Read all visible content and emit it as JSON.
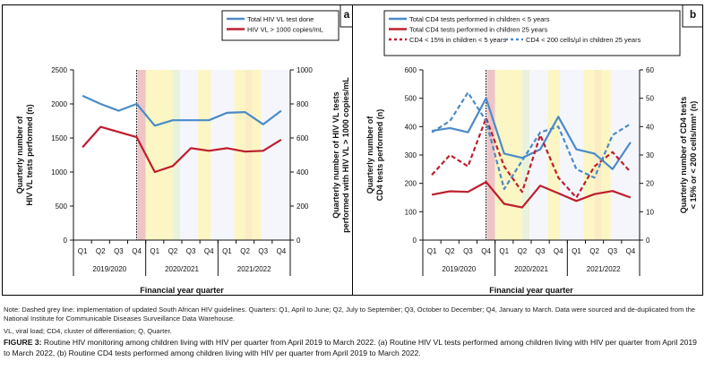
{
  "colors": {
    "blue": "#4a8bc9",
    "red": "#be1e2d",
    "band_pink": "#eec4c6",
    "band_yellow": "#fbf6c4",
    "band_green": "#e9f2dc",
    "band_lavender": "#f5f6fc",
    "band_orange": "#fcecc4"
  },
  "chart_data": [
    {
      "type": "line",
      "panel_label": "a",
      "xlabel": "Financial year quarter",
      "ylabel": "Quarterly number of HIV VL tests performed (n)",
      "ylabel_lines": [
        "Quarterly number of",
        "HIV VL tests performed (n)"
      ],
      "y2label_lines": [
        "Quarterly number of HIV VL tests",
        "performed with HIV VL > 1000 copies/mL"
      ],
      "ylim": [
        0,
        2500
      ],
      "y2lim": [
        0,
        1000
      ],
      "yticks": [
        "0",
        "500",
        "1000",
        "1500",
        "2000",
        "2500"
      ],
      "y2ticks": [
        "0",
        "200",
        "400",
        "600",
        "800",
        "1000"
      ],
      "categories": [
        "Q1",
        "Q2",
        "Q3",
        "Q4",
        "Q1",
        "Q2",
        "Q3",
        "Q4",
        "Q1",
        "Q2",
        "Q3",
        "Q4"
      ],
      "groups": [
        "2019/2020",
        "2020/2021",
        "2021/2022"
      ],
      "guideline_line_after_index": 3,
      "series": [
        {
          "name": "Total HIV VL test done",
          "axis": "left",
          "style": "solid",
          "color": "blue",
          "values": [
            2120,
            2000,
            1900,
            2000,
            1680,
            1760,
            1760,
            1760,
            1870,
            1880,
            1700,
            1900
          ]
        },
        {
          "name": "HIV VL > 1000 copies/mL",
          "axis": "right",
          "style": "solid",
          "color": "red",
          "values": [
            545,
            665,
            635,
            605,
            400,
            435,
            540,
            525,
            540,
            520,
            525,
            590
          ]
        }
      ],
      "legend": "top-right"
    },
    {
      "type": "line",
      "panel_label": "b",
      "xlabel": "Financial year quarter",
      "ylabel": "Quarterly number of CD4 tests performed (n)",
      "ylabel_lines": [
        "Quarterly number of",
        "CD4 tests performed (n)"
      ],
      "y2label_lines": [
        "Quarterly number of CD4 tests",
        "< 15% or < 200 cells/mm³ (n)"
      ],
      "ylim": [
        0,
        600
      ],
      "y2lim": [
        0,
        60
      ],
      "yticks": [
        "0",
        "100",
        "200",
        "300",
        "400",
        "500",
        "600"
      ],
      "y2ticks": [
        "0",
        "10",
        "20",
        "30",
        "40",
        "50",
        "60"
      ],
      "categories": [
        "Q1",
        "Q2",
        "Q3",
        "Q4",
        "Q1",
        "Q2",
        "Q3",
        "Q4",
        "Q1",
        "Q2",
        "Q3",
        "Q4"
      ],
      "groups": [
        "2019/2020",
        "2020/2021",
        "2021/2022"
      ],
      "guideline_line_after_index": 3,
      "series": [
        {
          "name": "Total CD4 tests performed in children < 5 years",
          "axis": "left",
          "style": "solid",
          "color": "blue",
          "values": [
            385,
            395,
            380,
            500,
            305,
            290,
            320,
            435,
            320,
            305,
            250,
            345
          ]
        },
        {
          "name": "Total CD4 tests performed in children 25 years",
          "axis": "left",
          "style": "solid",
          "color": "red",
          "values": [
            160,
            172,
            170,
            205,
            128,
            115,
            192,
            165,
            138,
            162,
            173,
            150
          ]
        },
        {
          "name": "CD4 < 15% in children < 5 years",
          "axis": "right",
          "style": "dashed",
          "color": "red",
          "values": [
            23,
            30,
            26,
            43,
            26,
            17,
            37,
            22,
            15,
            26,
            31,
            24
          ]
        },
        {
          "name": "CD4 < 200 cells/µl in children 25 years",
          "axis": "right",
          "style": "dashed",
          "color": "blue",
          "values": [
            38,
            42,
            52,
            42,
            18,
            28,
            38,
            40,
            25,
            22,
            37,
            41
          ]
        }
      ],
      "legend": "top"
    }
  ],
  "notes": {
    "note": "Note: Dashed grey line: implementation of updated South African HIV guidelines. Quarters: Q1, April to June; Q2, July to September; Q3, October to December; Q4, January to March. Data were sourced and de-duplicated from the National Institute for Communicable Diseases Surveillance Data Warehouse.",
    "abbreviations": "VL, viral load; CD4, cluster of differentiation; Q, Quarter."
  },
  "caption": {
    "label": "FIGURE 3:",
    "text": " Routine HIV monitoring among children living with HIV per quarter from April 2019 to March 2022. (a) Routine HIV VL tests performed among children living with HIV per quarter from April 2019 to March 2022, (b) Routine CD4 tests performed among children living with HIV per quarter from April 2019 to March 2022."
  }
}
